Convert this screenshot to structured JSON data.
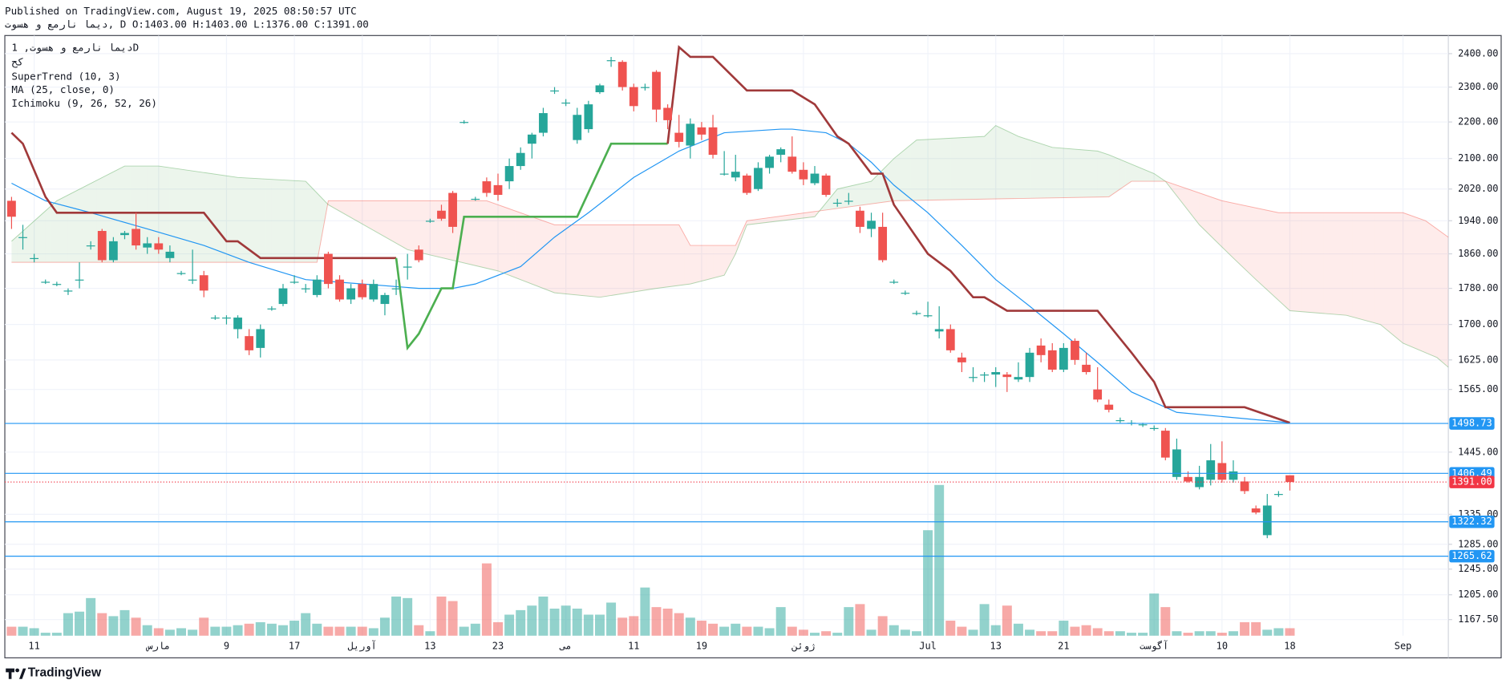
{
  "header": {
    "published": "Published on TradingView.com, August 19, 2025 08:50:57 UTC",
    "symbol_line": "دیما نارمع و هسوت, D O:1403.00 H:1403.00 L:1376.00 C:1391.00"
  },
  "legend": [
    "دیما نارمع و هسوت, 1D",
    "کح",
    "SuperTrend (10, 3)",
    "MA (25, close, 0)",
    "Ichimoku (9, 26, 52, 26)"
  ],
  "footer": {
    "brand": "TradingView"
  },
  "chart_data": {
    "type": "candlestick",
    "log_scale": true,
    "grid": true,
    "up_color": "#26a69a",
    "down_color": "#ef5350",
    "ylim": [
      1112,
      2456
    ],
    "yticks": [
      {
        "value": 2400,
        "label": "2400.00"
      },
      {
        "value": 2300,
        "label": "2300.00"
      },
      {
        "value": 2200,
        "label": "2200.00"
      },
      {
        "value": 2100,
        "label": "2100.00"
      },
      {
        "value": 2020,
        "label": "2020.00"
      },
      {
        "value": 1940,
        "label": "1940.00"
      },
      {
        "value": 1860,
        "label": "1860.00"
      },
      {
        "value": 1780,
        "label": "1780.00"
      },
      {
        "value": 1700,
        "label": "1700.00"
      },
      {
        "value": 1625,
        "label": "1625.00"
      },
      {
        "value": 1565,
        "label": "1565.00"
      },
      {
        "value": 1445,
        "label": "1445.00"
      },
      {
        "value": 1335,
        "label": "1335.00"
      },
      {
        "value": 1285,
        "label": "1285.00"
      },
      {
        "value": 1245,
        "label": "1245.00"
      },
      {
        "value": 1205,
        "label": "1205.00"
      },
      {
        "value": 1167.5,
        "label": "1167.50"
      }
    ],
    "x_labels": {
      "x": [
        2,
        13,
        19,
        25,
        31,
        37,
        43,
        49,
        55,
        61,
        70,
        81,
        87,
        93,
        101,
        107,
        113,
        123
      ],
      "labels": [
        "11",
        "مارس",
        "9",
        "17",
        "آوریل",
        "13",
        "23",
        "می",
        "11",
        "19",
        "ژوئن",
        "Jul",
        "13",
        "21",
        "آگوست",
        "10",
        "18",
        "Sep"
      ]
    },
    "ohlc": [
      [
        1990,
        2000,
        1920,
        1950
      ],
      [
        1900,
        1930,
        1870,
        1900
      ],
      [
        1850,
        1860,
        1840,
        1850
      ],
      [
        1795,
        1800,
        1790,
        1795
      ],
      [
        1790,
        1795,
        1785,
        1790
      ],
      [
        1775,
        1780,
        1765,
        1775
      ],
      [
        1800,
        1840,
        1780,
        1800
      ],
      [
        1880,
        1890,
        1870,
        1880
      ],
      [
        1915,
        1920,
        1840,
        1845
      ],
      [
        1845,
        1900,
        1840,
        1890
      ],
      [
        1905,
        1915,
        1895,
        1910
      ],
      [
        1920,
        1960,
        1870,
        1880
      ],
      [
        1875,
        1900,
        1860,
        1885
      ],
      [
        1885,
        1900,
        1860,
        1870
      ],
      [
        1850,
        1880,
        1840,
        1865
      ],
      [
        1815,
        1820,
        1810,
        1815
      ],
      [
        1800,
        1870,
        1790,
        1800
      ],
      [
        1810,
        1820,
        1760,
        1775
      ],
      [
        1715,
        1720,
        1710,
        1715
      ],
      [
        1715,
        1720,
        1700,
        1715
      ],
      [
        1690,
        1720,
        1670,
        1715
      ],
      [
        1675,
        1690,
        1635,
        1645
      ],
      [
        1650,
        1700,
        1630,
        1690
      ],
      [
        1735,
        1740,
        1730,
        1735
      ],
      [
        1745,
        1790,
        1740,
        1780
      ],
      [
        1795,
        1810,
        1790,
        1795
      ],
      [
        1780,
        1790,
        1770,
        1780
      ],
      [
        1765,
        1810,
        1760,
        1800
      ],
      [
        1860,
        1865,
        1780,
        1790
      ],
      [
        1800,
        1810,
        1750,
        1755
      ],
      [
        1755,
        1790,
        1745,
        1780
      ],
      [
        1790,
        1800,
        1755,
        1760
      ],
      [
        1755,
        1800,
        1750,
        1790
      ],
      [
        1745,
        1770,
        1720,
        1765
      ],
      [
        1780,
        1800,
        1765,
        1780
      ],
      [
        1830,
        1860,
        1800,
        1830
      ],
      [
        1870,
        1880,
        1840,
        1845
      ],
      [
        1940,
        1945,
        1935,
        1940
      ],
      [
        1965,
        1980,
        1940,
        1945
      ],
      [
        2010,
        2015,
        1910,
        1925
      ],
      [
        2200,
        2205,
        2195,
        2200
      ],
      [
        1995,
        2000,
        1990,
        1995
      ],
      [
        2040,
        2050,
        2000,
        2010
      ],
      [
        2030,
        2060,
        1990,
        2005
      ],
      [
        2040,
        2100,
        2020,
        2080
      ],
      [
        2080,
        2130,
        2070,
        2115
      ],
      [
        2140,
        2170,
        2100,
        2165
      ],
      [
        2170,
        2240,
        2160,
        2225
      ],
      [
        2290,
        2300,
        2280,
        2290
      ],
      [
        2255,
        2265,
        2245,
        2255
      ],
      [
        2150,
        2240,
        2140,
        2220
      ],
      [
        2180,
        2260,
        2170,
        2250
      ],
      [
        2285,
        2310,
        2280,
        2305
      ],
      [
        2380,
        2390,
        2360,
        2380
      ],
      [
        2375,
        2380,
        2290,
        2300
      ],
      [
        2300,
        2310,
        2230,
        2245
      ],
      [
        2300,
        2310,
        2290,
        2300
      ],
      [
        2345,
        2350,
        2200,
        2235
      ],
      [
        2240,
        2250,
        2180,
        2205
      ],
      [
        2170,
        2220,
        2130,
        2145
      ],
      [
        2135,
        2210,
        2100,
        2195
      ],
      [
        2185,
        2200,
        2150,
        2165
      ],
      [
        2185,
        2220,
        2100,
        2110
      ],
      [
        2060,
        2120,
        2055,
        2060
      ],
      [
        2050,
        2110,
        2040,
        2065
      ],
      [
        2055,
        2060,
        2005,
        2010
      ],
      [
        2020,
        2090,
        2015,
        2075
      ],
      [
        2075,
        2110,
        2060,
        2105
      ],
      [
        2110,
        2130,
        2090,
        2125
      ],
      [
        2105,
        2160,
        2060,
        2065
      ],
      [
        2070,
        2090,
        2030,
        2045
      ],
      [
        2035,
        2080,
        2030,
        2060
      ],
      [
        2055,
        2060,
        2000,
        2005
      ],
      [
        1985,
        1995,
        1975,
        1985
      ],
      [
        1990,
        2010,
        1980,
        1990
      ],
      [
        1965,
        1975,
        1910,
        1925
      ],
      [
        1920,
        1960,
        1900,
        1940
      ],
      [
        1925,
        1960,
        1840,
        1845
      ],
      [
        1795,
        1800,
        1790,
        1795
      ],
      [
        1770,
        1775,
        1765,
        1770
      ],
      [
        1725,
        1730,
        1720,
        1725
      ],
      [
        1720,
        1750,
        1715,
        1720
      ],
      [
        1685,
        1740,
        1670,
        1690
      ],
      [
        1690,
        1700,
        1640,
        1645
      ],
      [
        1630,
        1640,
        1600,
        1620
      ],
      [
        1590,
        1610,
        1580,
        1590
      ],
      [
        1595,
        1600,
        1580,
        1595
      ],
      [
        1595,
        1610,
        1570,
        1600
      ],
      [
        1595,
        1600,
        1560,
        1590
      ],
      [
        1585,
        1620,
        1580,
        1590
      ],
      [
        1590,
        1650,
        1580,
        1640
      ],
      [
        1655,
        1670,
        1620,
        1635
      ],
      [
        1645,
        1660,
        1600,
        1605
      ],
      [
        1605,
        1660,
        1600,
        1650
      ],
      [
        1665,
        1670,
        1615,
        1625
      ],
      [
        1615,
        1640,
        1595,
        1600
      ],
      [
        1565,
        1610,
        1540,
        1545
      ],
      [
        1535,
        1545,
        1520,
        1525
      ],
      [
        1505,
        1510,
        1500,
        1505
      ],
      [
        1500,
        1505,
        1495,
        1500
      ],
      [
        1497,
        1500,
        1492,
        1497
      ],
      [
        1490,
        1495,
        1485,
        1490
      ],
      [
        1485,
        1490,
        1430,
        1435
      ],
      [
        1400,
        1470,
        1395,
        1450
      ],
      [
        1400,
        1410,
        1390,
        1392
      ],
      [
        1382,
        1420,
        1378,
        1400
      ],
      [
        1395,
        1460,
        1385,
        1430
      ],
      [
        1425,
        1465,
        1390,
        1395
      ],
      [
        1395,
        1430,
        1390,
        1410
      ],
      [
        1392,
        1400,
        1370,
        1375
      ],
      [
        1345,
        1350,
        1335,
        1338
      ],
      [
        1300,
        1370,
        1295,
        1350
      ],
      [
        1370,
        1375,
        1365,
        1370
      ],
      [
        1403,
        1403,
        1376,
        1391
      ]
    ],
    "volume_lim": [
      0,
      100
    ],
    "volume": [
      6,
      6,
      5,
      2,
      2,
      15,
      16,
      25,
      15,
      13,
      17,
      12,
      7,
      5,
      4,
      5,
      4,
      12,
      6,
      6,
      7,
      8,
      9,
      8,
      7,
      10,
      15,
      8,
      6,
      6,
      6,
      6,
      5,
      12,
      26,
      25,
      7,
      3,
      26,
      23,
      6,
      8,
      48,
      9,
      14,
      17,
      20,
      26,
      18,
      20,
      18,
      14,
      14,
      22,
      12,
      13,
      32,
      19,
      18,
      15,
      12,
      10,
      8,
      6,
      8,
      6,
      6,
      5,
      19,
      6,
      4,
      2,
      3,
      2,
      19,
      21,
      4,
      13,
      7,
      4,
      3,
      70,
      100,
      10,
      6,
      4,
      21,
      7,
      20,
      8,
      4,
      3,
      3,
      10,
      6,
      7,
      5,
      3,
      3,
      2,
      2,
      28,
      19,
      3,
      2,
      3,
      3,
      2,
      3,
      9,
      9,
      4,
      5,
      5
    ],
    "supertrend": [
      {
        "color": "#a0393a",
        "x": [
          0,
          1,
          3,
          4,
          17,
          19,
          20,
          22,
          34
        ],
        "values": [
          2170,
          2140,
          2000,
          1960,
          1960,
          1890,
          1890,
          1850,
          1850
        ]
      },
      {
        "color": "#4caf50",
        "x": [
          34,
          35,
          36,
          38,
          39,
          40,
          50,
          53,
          58
        ],
        "values": [
          1850,
          1650,
          1680,
          1780,
          1780,
          1950,
          1950,
          2140,
          2140
        ]
      },
      {
        "color": "#a0393a",
        "x": [
          58,
          59,
          60,
          62,
          65,
          69,
          71,
          73,
          74,
          76,
          77,
          78,
          81,
          83,
          85,
          86,
          88,
          96,
          99,
          101,
          102,
          109,
          113
        ],
        "values": [
          2140,
          2420,
          2390,
          2390,
          2290,
          2290,
          2250,
          2160,
          2140,
          2060,
          2060,
          1980,
          1860,
          1820,
          1760,
          1760,
          1730,
          1730,
          1640,
          1580,
          1530,
          1530,
          1500
        ]
      }
    ],
    "ma": {
      "color": "#2196f3",
      "x": [
        0,
        3,
        7,
        12,
        17,
        21,
        26,
        31,
        36,
        39,
        41,
        45,
        48,
        51,
        55,
        59,
        63,
        68,
        69,
        72,
        74,
        76,
        78,
        81,
        84,
        87,
        90,
        93,
        96,
        99,
        103,
        113
      ],
      "values": [
        2035,
        1990,
        1960,
        1920,
        1880,
        1840,
        1800,
        1790,
        1780,
        1780,
        1790,
        1830,
        1900,
        1960,
        2050,
        2120,
        2170,
        2180,
        2180,
        2170,
        2140,
        2090,
        2030,
        1960,
        1880,
        1800,
        1740,
        1680,
        1620,
        1560,
        1520,
        1500
      ]
    },
    "ichimoku": {
      "up_color": "#43a047",
      "down_color": "#f44336",
      "span_a": {
        "x": [
          0,
          4,
          10,
          13,
          20,
          26,
          28,
          35,
          43,
          48,
          52,
          57,
          60,
          63,
          64,
          65,
          71,
          73,
          76,
          78,
          80,
          86,
          87,
          89,
          92,
          96,
          97,
          101,
          102,
          105,
          108,
          110,
          113,
          118,
          121,
          123,
          126,
          127
        ],
        "values": [
          1890,
          1990,
          2080,
          2080,
          2050,
          2040,
          1980,
          1870,
          1820,
          1770,
          1760,
          1780,
          1790,
          1810,
          1860,
          1930,
          1950,
          2020,
          2040,
          2100,
          2150,
          2160,
          2190,
          2160,
          2130,
          2120,
          2110,
          2060,
          2040,
          1930,
          1850,
          1800,
          1730,
          1720,
          1700,
          1660,
          1630,
          1610
        ]
      },
      "span_b": {
        "x": [
          0,
          27,
          28,
          42,
          48,
          59,
          60,
          64,
          65,
          78,
          97,
          99,
          102,
          107,
          112,
          123,
          125,
          127
        ],
        "values": [
          1840,
          1840,
          1990,
          1990,
          1930,
          1930,
          1880,
          1880,
          1940,
          1990,
          2000,
          2040,
          2040,
          1990,
          1960,
          1960,
          1940,
          1900
        ]
      }
    },
    "price_lines": [
      {
        "value": 1498.73,
        "color": "#2196f3"
      },
      {
        "value": 1406.49,
        "color": "#2196f3"
      },
      {
        "value": 1322.32,
        "color": "#2196f3"
      },
      {
        "value": 1265.62,
        "color": "#2196f3"
      },
      {
        "value": 1391,
        "label": "1391.00",
        "color": "#f23645",
        "dotted": true
      }
    ]
  }
}
